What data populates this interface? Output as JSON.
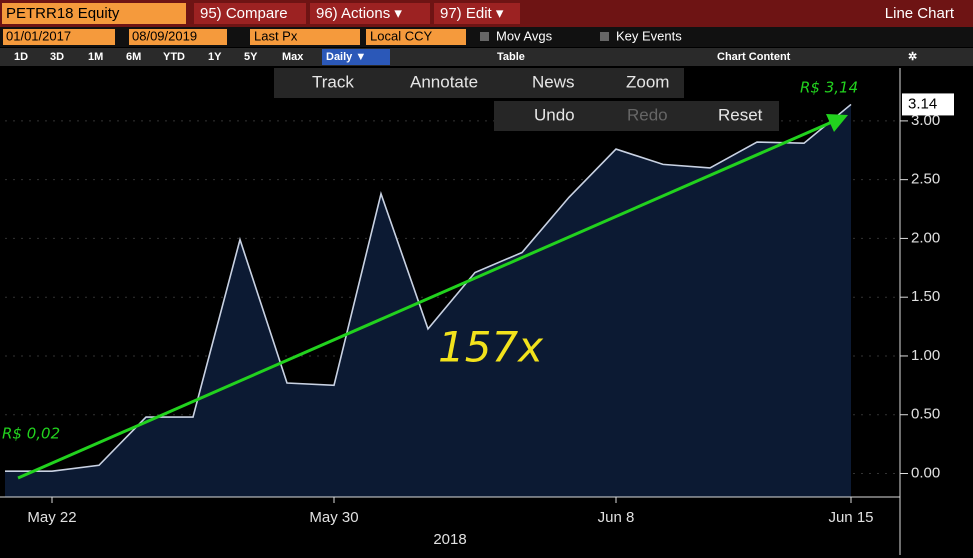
{
  "toolbar": {
    "ticker": "PETRR18 Equity",
    "compare": "95) Compare",
    "actions": "96) Actions ▾",
    "edit": "97) Edit ▾",
    "view": "Line Chart",
    "start_date": "01/01/2017",
    "end_date": "08/09/2019",
    "field": "Last Px",
    "currency": "Local CCY",
    "mov_avgs": "Mov Avgs",
    "key_events": "Key Events",
    "periods": [
      "1D",
      "3D",
      "1M",
      "6M",
      "YTD",
      "1Y",
      "5Y",
      "Max"
    ],
    "frequency": "Daily ▼",
    "table": "Table",
    "chart_content": "Chart Content",
    "tools": [
      "Track",
      "Annotate",
      "News",
      "Zoom"
    ],
    "history": [
      "Undo",
      "Redo",
      "Reset"
    ]
  },
  "chart_data": {
    "type": "area",
    "x_label": "2018",
    "categories": [
      null,
      "May 22",
      null,
      null,
      null,
      null,
      null,
      "May 30",
      null,
      null,
      null,
      null,
      null,
      "Jun 8",
      null,
      null,
      null,
      null,
      "Jun 15"
    ],
    "series": [
      {
        "name": "PETRR18 Equity",
        "color": "#c9d2e3",
        "fill": "#0c1a33",
        "values": [
          0.02,
          0.02,
          0.07,
          0.48,
          0.48,
          1.99,
          0.77,
          0.75,
          2.38,
          1.23,
          1.71,
          1.88,
          2.35,
          2.76,
          2.63,
          2.6,
          2.82,
          2.81,
          3.14
        ]
      }
    ],
    "ylim": [
      -0.2,
      3.45
    ],
    "yticks": [
      {
        "value": 0,
        "label": "0.00"
      },
      {
        "value": 0.5,
        "label": "0.50"
      },
      {
        "value": 1,
        "label": "1.00"
      },
      {
        "value": 1.5,
        "label": "1.50"
      },
      {
        "value": 2,
        "label": "2.00"
      },
      {
        "value": 2.5,
        "label": "2.50"
      },
      {
        "value": 3,
        "label": "3.00"
      }
    ],
    "annotations": [
      "R$ 0,02",
      "R$ 3,14",
      "157x"
    ]
  }
}
